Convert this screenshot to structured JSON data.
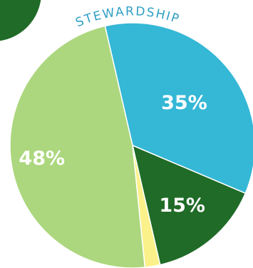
{
  "chart_data": {
    "type": "pie",
    "title": "STEWARDSHIP",
    "slices": [
      {
        "label": "35%",
        "value": 35,
        "color": "#35b7d6"
      },
      {
        "label": "15%",
        "value": 15,
        "color": "#1f6b27"
      },
      {
        "label": "",
        "value": 2,
        "color": "#fbf18a"
      },
      {
        "label": "48%",
        "value": 48,
        "color": "#acd77e"
      }
    ]
  },
  "decoration": {
    "corner_color": "#1f6b27"
  }
}
